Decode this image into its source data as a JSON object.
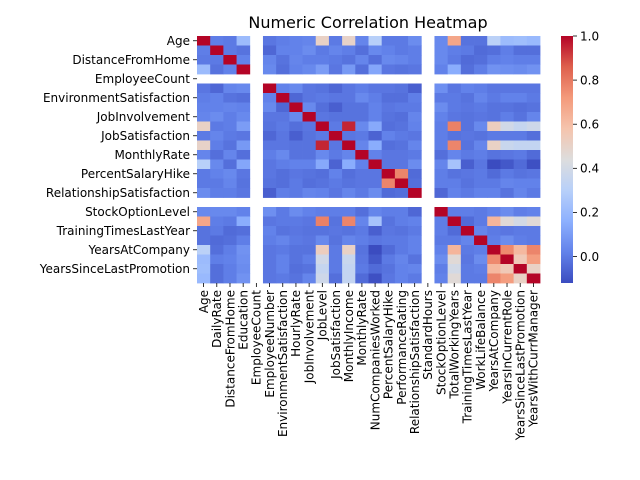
{
  "chart_data": {
    "type": "heatmap",
    "title": "Numeric Correlation Heatmap",
    "variables": [
      "Age",
      "DailyRate",
      "DistanceFromHome",
      "Education",
      "EmployeeCount",
      "EmployeeNumber",
      "EnvironmentSatisfaction",
      "HourlyRate",
      "JobInvolvement",
      "JobLevel",
      "JobSatisfaction",
      "MonthlyIncome",
      "MonthlyRate",
      "NumCompaniesWorked",
      "PercentSalaryHike",
      "PerformanceRating",
      "RelationshipSatisfaction",
      "StandardHours",
      "StockOptionLevel",
      "TotalWorkingYears",
      "TrainingTimesLastYear",
      "WorkLifeBalance",
      "YearsAtCompany",
      "YearsInCurrentRole",
      "YearsSinceLastPromotion",
      "YearsWithCurrManager"
    ],
    "y_tick_labels": [
      "Age",
      "DistanceFromHome",
      "EmployeeCount",
      "EnvironmentSatisfaction",
      "JobInvolvement",
      "JobSatisfaction",
      "MonthlyRate",
      "PercentSalaryHike",
      "RelationshipSatisfaction",
      "StockOptionLevel",
      "TrainingTimesLastYear",
      "YearsAtCompany",
      "YearsSinceLastPromotion"
    ],
    "x_tick_labels": [
      "Age",
      "DailyRate",
      "DistanceFromHome",
      "Education",
      "EmployeeCount",
      "EmployeeNumber",
      "EnvironmentSatisfaction",
      "HourlyRate",
      "JobInvolvement",
      "JobLevel",
      "JobSatisfaction",
      "MonthlyIncome",
      "MonthlyRate",
      "NumCompaniesWorked",
      "PercentSalaryHike",
      "PerformanceRating",
      "RelationshipSatisfaction",
      "StandardHours",
      "StockOptionLevel",
      "TotalWorkingYears",
      "TrainingTimesLastYear",
      "WorkLifeBalance",
      "YearsAtCompany",
      "YearsInCurrentRole",
      "YearsSinceLastPromotion",
      "YearsWithCurrManager"
    ],
    "constant_variables": [
      "EmployeeCount",
      "StandardHours"
    ],
    "matrix": [
      [
        1,
        0.01,
        0,
        0.21,
        null,
        -0.01,
        0.01,
        0.02,
        0.03,
        0.51,
        0,
        0.5,
        0.03,
        0.3,
        0,
        0,
        0.05,
        null,
        0.04,
        0.68,
        -0.02,
        -0.02,
        0.31,
        0.21,
        0.22,
        0.2
      ],
      [
        0.01,
        1,
        0,
        -0.02,
        null,
        -0.05,
        0.02,
        0.02,
        0.05,
        0,
        0.03,
        0.01,
        -0.03,
        0.04,
        0.02,
        0,
        0.01,
        null,
        0.04,
        0.01,
        0,
        -0.04,
        -0.03,
        0.01,
        -0.03,
        -0.03
      ],
      [
        0,
        0,
        1,
        0.02,
        null,
        0.03,
        -0.02,
        0.03,
        0.01,
        0.01,
        0,
        -0.02,
        0.03,
        -0.03,
        0.04,
        0.03,
        0.01,
        null,
        0.04,
        0,
        -0.04,
        -0.03,
        0.01,
        0.02,
        0.01,
        0.01
      ],
      [
        0.21,
        -0.02,
        0.02,
        1,
        null,
        0.04,
        -0.03,
        0.02,
        0.04,
        0.1,
        -0.01,
        0.09,
        -0.03,
        0.13,
        -0.01,
        -0.02,
        -0.01,
        null,
        0.02,
        0.15,
        -0.03,
        0.01,
        0.07,
        0.06,
        0.05,
        0.07
      ],
      [
        null,
        null,
        null,
        null,
        null,
        null,
        null,
        null,
        null,
        null,
        null,
        null,
        null,
        null,
        null,
        null,
        null,
        null,
        null,
        null,
        null,
        null,
        null,
        null,
        null,
        null
      ],
      [
        -0.01,
        -0.05,
        0.03,
        0.04,
        null,
        1,
        0.02,
        0.04,
        -0.01,
        -0.02,
        -0.05,
        -0.01,
        0.01,
        -0.01,
        -0.01,
        -0.02,
        -0.07,
        null,
        0.06,
        -0.01,
        0.02,
        0.01,
        -0.01,
        -0.01,
        -0.01,
        -0.01
      ],
      [
        0.01,
        0.02,
        -0.02,
        -0.03,
        null,
        0.02,
        1,
        -0.05,
        -0.01,
        0,
        -0.01,
        -0.01,
        0.04,
        0.01,
        -0.03,
        -0.03,
        0.01,
        null,
        0,
        -0.0,
        -0.02,
        0.03,
        0,
        0.02,
        0.02,
        0
      ],
      [
        0.02,
        0.02,
        0.03,
        0.02,
        null,
        0.04,
        -0.05,
        1,
        0.04,
        -0.03,
        -0.07,
        -0.02,
        -0.02,
        0.02,
        -0.01,
        0,
        0,
        null,
        0.05,
        0,
        -0.01,
        -0.0,
        -0.02,
        -0.02,
        -0.03,
        -0.02
      ],
      [
        0.03,
        0.05,
        0.01,
        0.04,
        null,
        -0.01,
        -0.01,
        0.04,
        1,
        -0.01,
        -0.02,
        -0.02,
        -0.02,
        0.02,
        -0.02,
        -0.03,
        0.03,
        null,
        0.02,
        -0.01,
        -0.02,
        -0.01,
        -0.02,
        0.01,
        -0.02,
        0.03
      ],
      [
        0.51,
        0,
        0.01,
        0.1,
        null,
        -0.02,
        0,
        -0.03,
        -0.01,
        1,
        -0.0,
        0.95,
        0.04,
        0.14,
        -0.03,
        -0.02,
        0.02,
        null,
        0.01,
        0.78,
        -0.02,
        0.04,
        0.53,
        0.39,
        0.35,
        0.38
      ],
      [
        0,
        0.03,
        0,
        -0.01,
        null,
        -0.05,
        -0.01,
        -0.07,
        -0.02,
        0,
        1,
        -0.01,
        0,
        -0.06,
        0.02,
        0,
        -0.01,
        null,
        0.01,
        -0.02,
        -0.01,
        -0.02,
        0,
        0,
        0,
        -0.03
      ],
      [
        0.5,
        0.01,
        -0.02,
        0.09,
        null,
        -0.01,
        -0.01,
        -0.02,
        -0.02,
        0.95,
        -0.01,
        1,
        0.03,
        0.15,
        -0.03,
        -0.02,
        0.03,
        null,
        0.01,
        0.77,
        -0.02,
        0.03,
        0.51,
        0.36,
        0.34,
        0.34
      ],
      [
        0.03,
        -0.03,
        0.03,
        -0.03,
        null,
        0.01,
        0.04,
        -0.02,
        -0.02,
        0.04,
        0,
        0.03,
        1,
        0.02,
        -0.01,
        -0.01,
        -0.0,
        null,
        -0.03,
        0.03,
        0,
        0.01,
        -0.02,
        -0.01,
        0,
        -0.04
      ],
      [
        0.3,
        0.04,
        -0.03,
        0.13,
        null,
        -0.01,
        0.01,
        0.02,
        0.02,
        0.14,
        -0.06,
        0.15,
        0.02,
        1,
        -0.01,
        -0.01,
        0.05,
        null,
        0.03,
        0.24,
        -0.07,
        -0.01,
        -0.12,
        -0.09,
        -0.04,
        -0.11
      ],
      [
        0,
        0.02,
        0.04,
        -0.01,
        null,
        -0.01,
        -0.03,
        -0.01,
        -0.02,
        -0.03,
        0.02,
        -0.03,
        -0.01,
        -0.01,
        1,
        0.77,
        -0.04,
        null,
        0.01,
        -0.02,
        -0.01,
        0,
        -0.04,
        0,
        -0.02,
        -0.01
      ],
      [
        0,
        0,
        0.03,
        -0.02,
        null,
        -0.02,
        -0.03,
        0,
        -0.03,
        -0.02,
        0,
        -0.02,
        -0.01,
        -0.01,
        0.77,
        1,
        -0.03,
        null,
        0.01,
        0.01,
        -0.02,
        0,
        0,
        0.03,
        0.02,
        0.02
      ],
      [
        0.05,
        0.01,
        0.01,
        -0.01,
        null,
        -0.07,
        0.01,
        0,
        0.03,
        0.02,
        -0.01,
        0.03,
        -0.0,
        0.05,
        -0.04,
        -0.03,
        1,
        null,
        -0.05,
        0.02,
        0,
        0.02,
        0.02,
        -0.02,
        0.03,
        -0.0
      ],
      [
        null,
        null,
        null,
        null,
        null,
        null,
        null,
        null,
        null,
        null,
        null,
        null,
        null,
        null,
        null,
        null,
        null,
        null,
        null,
        null,
        null,
        null,
        null,
        null,
        null,
        null
      ],
      [
        0.04,
        0.04,
        0.04,
        0.02,
        null,
        0.06,
        0,
        0.05,
        0.02,
        0.01,
        0.01,
        0.01,
        -0.03,
        0.03,
        0.01,
        0.01,
        -0.05,
        null,
        1,
        0.01,
        0.01,
        0,
        0.02,
        0.05,
        0.01,
        0.02
      ],
      [
        0.68,
        0.01,
        0,
        0.15,
        null,
        -0.01,
        -0.0,
        0,
        -0.01,
        0.78,
        -0.02,
        0.77,
        0.03,
        0.24,
        -0.02,
        0.01,
        0.02,
        null,
        0.01,
        1,
        -0.04,
        0,
        0.63,
        0.46,
        0.4,
        0.46
      ],
      [
        -0.02,
        0,
        -0.04,
        -0.03,
        null,
        0.02,
        -0.02,
        -0.01,
        -0.02,
        -0.02,
        -0.01,
        -0.02,
        0,
        -0.07,
        -0.01,
        -0.02,
        0,
        null,
        0.01,
        -0.04,
        1,
        0.03,
        0,
        -0.01,
        0,
        -0.0
      ],
      [
        -0.02,
        -0.04,
        -0.03,
        0.01,
        null,
        0.01,
        0.03,
        -0.0,
        -0.01,
        0.04,
        -0.02,
        0.03,
        0.01,
        -0.01,
        0,
        0,
        0.02,
        null,
        0,
        0,
        0.03,
        1,
        0.01,
        0.05,
        0.01,
        0
      ],
      [
        0.31,
        -0.03,
        0.01,
        0.07,
        null,
        -0.01,
        0,
        -0.02,
        -0.02,
        0.53,
        0,
        0.51,
        -0.02,
        -0.12,
        -0.04,
        0,
        0.02,
        null,
        0.02,
        0.63,
        0,
        0.01,
        1,
        0.76,
        0.62,
        0.77
      ],
      [
        0.21,
        0.01,
        0.02,
        0.06,
        null,
        -0.01,
        0.02,
        -0.02,
        0.01,
        0.39,
        0,
        0.36,
        -0.01,
        -0.09,
        0,
        0.03,
        -0.02,
        null,
        0.05,
        0.46,
        -0.01,
        0.05,
        0.76,
        1,
        0.55,
        0.71
      ],
      [
        0.22,
        -0.03,
        0.01,
        0.05,
        null,
        -0.01,
        0.02,
        -0.03,
        -0.02,
        0.35,
        0,
        0.34,
        0,
        -0.04,
        -0.02,
        0.02,
        0.03,
        null,
        0.01,
        0.4,
        0,
        0.01,
        0.62,
        0.55,
        1,
        0.51
      ],
      [
        0.2,
        -0.03,
        0.01,
        0.07,
        null,
        -0.01,
        0,
        -0.02,
        0.03,
        0.38,
        -0.03,
        0.34,
        -0.04,
        -0.11,
        -0.01,
        0.02,
        -0.0,
        null,
        0.02,
        0.46,
        -0.0,
        0,
        0.77,
        0.71,
        0.51,
        1
      ]
    ],
    "colorbar": {
      "colormap": "coolwarm",
      "vmin": -0.12,
      "vmax": 1.0,
      "ticks": [
        "0.0",
        "0.2",
        "0.4",
        "0.6",
        "0.8",
        "1.0"
      ],
      "tick_values": [
        0.0,
        0.2,
        0.4,
        0.6,
        0.8,
        1.0
      ]
    }
  }
}
